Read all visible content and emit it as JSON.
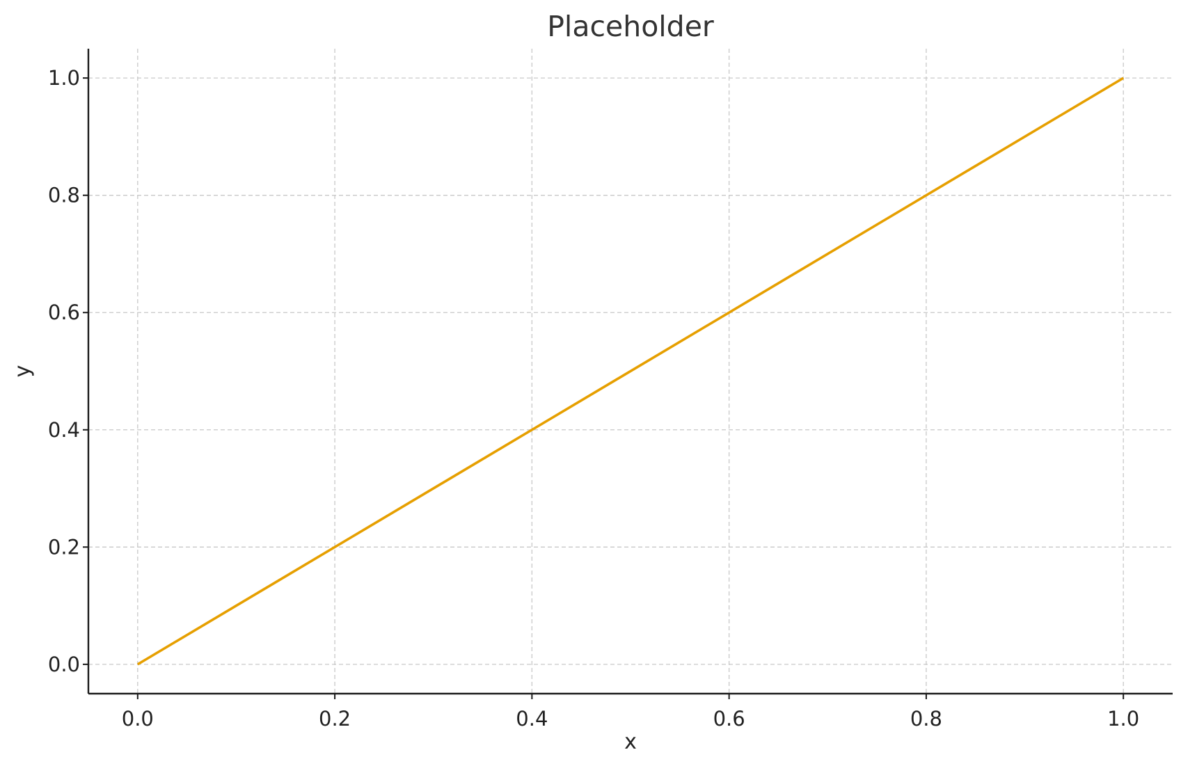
{
  "chart_data": {
    "type": "line",
    "title": "Placeholder",
    "xlabel": "x",
    "ylabel": "y",
    "xlim": [
      -0.05,
      1.05
    ],
    "ylim": [
      -0.05,
      1.05
    ],
    "x_ticks": [
      "0.0",
      "0.2",
      "0.4",
      "0.6",
      "0.8",
      "1.0"
    ],
    "y_ticks": [
      "0.0",
      "0.2",
      "0.4",
      "0.6",
      "0.8",
      "1.0"
    ],
    "grid": true,
    "grid_style": "dashed",
    "legend": "none",
    "series": [
      {
        "color": "#E69F00",
        "x": [
          0.0,
          1.0
        ],
        "y": [
          0.0,
          1.0
        ]
      }
    ]
  }
}
